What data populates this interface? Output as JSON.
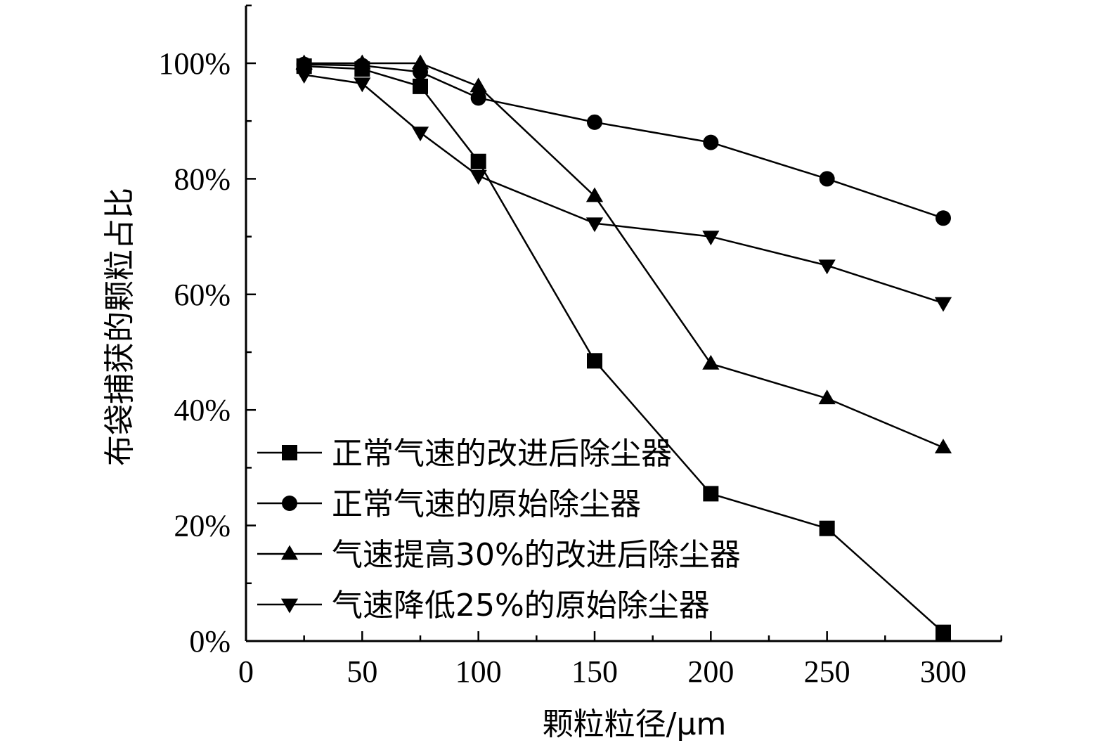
{
  "chart_data": {
    "type": "line",
    "title": "",
    "xlabel": "颗粒粒径/μm",
    "ylabel": "布袋捕获的颗粒占比",
    "xlim": [
      0,
      325
    ],
    "ylim": [
      0,
      110
    ],
    "x_ticks": [
      0,
      50,
      100,
      150,
      200,
      250,
      300
    ],
    "x_tick_labels": [
      "0",
      "50",
      "100",
      "150",
      "200",
      "250",
      "300"
    ],
    "y_ticks": [
      0,
      20,
      40,
      60,
      80,
      100
    ],
    "y_tick_labels": [
      "0%",
      "20%",
      "40%",
      "60%",
      "80%",
      "100%"
    ],
    "grid": false,
    "legend_position": "bottom-left",
    "x": [
      25,
      50,
      75,
      100,
      150,
      200,
      250,
      300
    ],
    "series": [
      {
        "name": "正常气速的改进后除尘器",
        "marker": "square",
        "values": [
          99.5,
          99.0,
          96.0,
          83.0,
          48.5,
          25.5,
          19.5,
          1.5
        ]
      },
      {
        "name": "正常气速的原始除尘器",
        "marker": "circle",
        "values": [
          99.8,
          99.6,
          98.5,
          94.0,
          89.8,
          86.3,
          80.0,
          73.2
        ]
      },
      {
        "name": "气速提高30%的改进后除尘器",
        "marker": "triangle-up",
        "values": [
          100.0,
          100.0,
          100.0,
          96.0,
          77.0,
          48.0,
          42.0,
          33.5
        ]
      },
      {
        "name": "气速降低25%的原始除尘器",
        "marker": "triangle-down",
        "values": [
          98.0,
          96.5,
          88.0,
          80.5,
          72.3,
          70.0,
          65.0,
          58.5
        ]
      }
    ]
  }
}
